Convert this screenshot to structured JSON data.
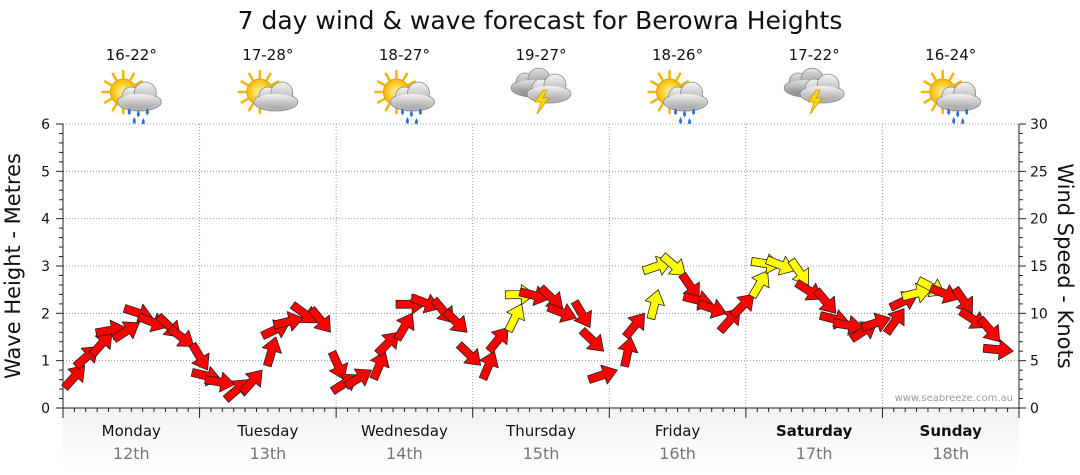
{
  "chart_data": {
    "type": "line",
    "title": "7 day wind & wave forecast for Berowra Heights",
    "ylabel_left": "Wave Height - Metres",
    "ylabel_right": "Wind Speed - Knots",
    "ylim_left": [
      0,
      6
    ],
    "ylim_right": [
      0,
      30
    ],
    "yticks_left": [
      "0",
      "1",
      "2",
      "3",
      "4",
      "5",
      "6"
    ],
    "yticks_right": [
      "0",
      "5",
      "10",
      "15",
      "20",
      "25",
      "30"
    ],
    "grid": true,
    "watermark": "www.seabreeze.com.au",
    "days": [
      {
        "day": "Monday",
        "date": "12th",
        "temp": "16-22°",
        "icon": "sun-cloud-rain-icon",
        "bold": false
      },
      {
        "day": "Tuesday",
        "date": "13th",
        "temp": "17-28°",
        "icon": "sun-cloud-icon",
        "bold": false
      },
      {
        "day": "Wednesday",
        "date": "14th",
        "temp": "18-27°",
        "icon": "sun-cloud-rain-icon",
        "bold": false
      },
      {
        "day": "Thursday",
        "date": "15th",
        "temp": "19-27°",
        "icon": "thunderstorm-icon",
        "bold": false
      },
      {
        "day": "Friday",
        "date": "16th",
        "temp": "18-26°",
        "icon": "sun-cloud-rain-icon",
        "bold": false
      },
      {
        "day": "Saturday",
        "date": "17th",
        "temp": "17-22°",
        "icon": "thunderstorm-icon",
        "bold": true
      },
      {
        "day": "Sunday",
        "date": "18th",
        "temp": "16-24°",
        "icon": "sun-cloud-rain-icon",
        "bold": true
      }
    ],
    "wind_color_levels": {
      "red": "#ff0000",
      "yellow": "#ffff00"
    },
    "wind_series": {
      "name": "Wind Speed",
      "units": "knots",
      "x_day": [
        0.1,
        0.2,
        0.3,
        0.4,
        0.5,
        0.6,
        0.7,
        0.8,
        0.9,
        1.0,
        1.1,
        1.2,
        1.3,
        1.4,
        1.5,
        1.6,
        1.7,
        1.8,
        1.9,
        2.0,
        2.1,
        2.2,
        2.3,
        2.4,
        2.5,
        2.6,
        2.7,
        2.8,
        2.9,
        3.0,
        3.1,
        3.2,
        3.3,
        3.4,
        3.5,
        3.6,
        3.7,
        3.8,
        3.9,
        4.0,
        4.1,
        4.2,
        4.3,
        4.4,
        4.5,
        4.6,
        4.7,
        4.8,
        4.9,
        5.0,
        5.1,
        5.2,
        5.3,
        5.4,
        5.5,
        5.6,
        5.7,
        5.8,
        5.9,
        6.0,
        6.1,
        6.2,
        6.3,
        6.4,
        6.5,
        6.6,
        6.7,
        6.8,
        6.9
      ],
      "values": [
        4.5,
        6.5,
        8.0,
        8.5,
        9.0,
        9.5,
        8.5,
        7.5,
        6.5,
        4.0,
        3.0,
        2.5,
        3.0,
        4.0,
        7.5,
        9.0,
        9.5,
        9.0,
        8.0,
        3.0,
        3.5,
        4.0,
        6.0,
        8.0,
        10.0,
        11.0,
        10.5,
        9.0,
        8.0,
        4.5,
        6.0,
        8.5,
        11.0,
        12.0,
        11.5,
        10.5,
        9.5,
        8.5,
        6.0,
        4.0,
        7.5,
        10.0,
        12.5,
        15.5,
        14.0,
        11.5,
        11.0,
        10.0,
        10.5,
        12.0,
        14.5,
        15.0,
        14.5,
        13.0,
        11.5,
        10.0,
        9.0,
        8.5,
        9.0,
        9.5,
        10.5,
        12.0,
        12.5,
        12.0,
        11.5,
        10.0,
        8.5,
        7.0,
        6.0
      ],
      "colors": [
        "red",
        "red",
        "red",
        "red",
        "red",
        "red",
        "red",
        "red",
        "red",
        "red",
        "red",
        "red",
        "red",
        "red",
        "red",
        "red",
        "red",
        "red",
        "red",
        "red",
        "red",
        "red",
        "red",
        "red",
        "red",
        "red",
        "red",
        "red",
        "red",
        "red",
        "red",
        "red",
        "yellow",
        "yellow",
        "red",
        "red",
        "red",
        "red",
        "red",
        "red",
        "red",
        "red",
        "yellow",
        "yellow",
        "yellow",
        "red",
        "red",
        "red",
        "red",
        "red",
        "yellow",
        "yellow",
        "yellow",
        "yellow",
        "red",
        "red",
        "red",
        "red",
        "red",
        "red",
        "red",
        "red",
        "yellow",
        "yellow",
        "red",
        "red",
        "red",
        "red",
        "red"
      ]
    }
  }
}
